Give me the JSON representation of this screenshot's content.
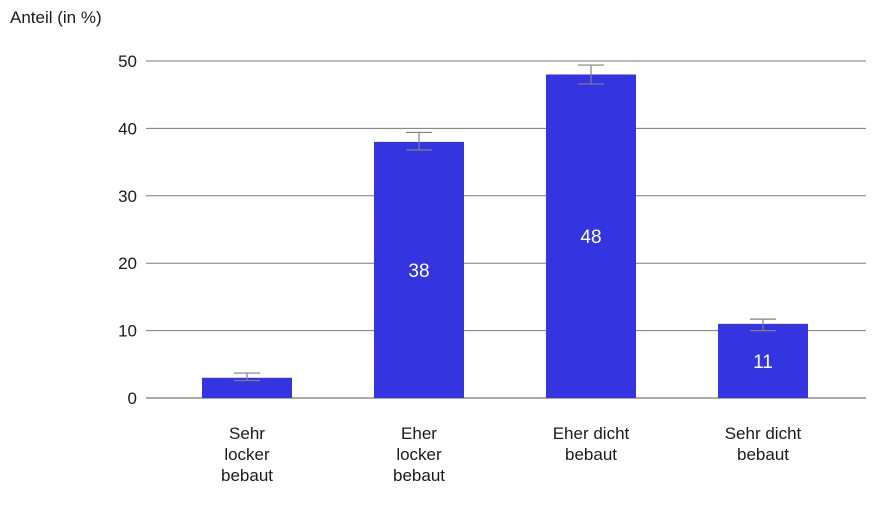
{
  "chart_data": {
    "type": "bar",
    "title": "",
    "xlabel": "",
    "ylabel": "Anteil (in %)",
    "categories": [
      "Sehr\nlocker\nbebaut",
      "Eher\nlocker\nbebaut",
      "Eher dicht\nbebaut",
      "Sehr dicht\nbebaut"
    ],
    "values": [
      3,
      38,
      48,
      11
    ],
    "data_labels": [
      "",
      "38",
      "48",
      "11"
    ],
    "error_bars": [
      [
        2.6,
        3.7
      ],
      [
        36.8,
        39.4
      ],
      [
        46.6,
        49.4
      ],
      [
        10.0,
        11.7
      ]
    ],
    "ylim": [
      0,
      50
    ],
    "yticks": [
      0,
      10,
      20,
      30,
      40,
      50
    ],
    "grid": true,
    "bar_color": "#3434e0",
    "label_color": "#ffffff",
    "error_color": "#808080"
  }
}
